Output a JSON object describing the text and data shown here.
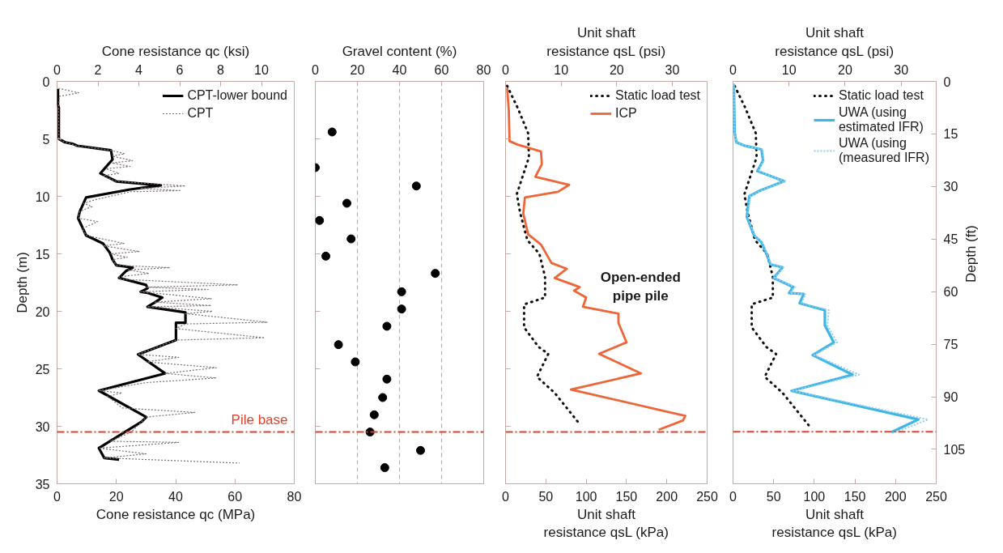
{
  "chart_data": [
    {
      "type": "line",
      "xlabel": "Cone resistance qc (MPa)",
      "x2label": "Cone resistance qc (ksi)",
      "ylabel": "Depth (m)",
      "xlim": [
        0,
        80
      ],
      "xticks": [
        0,
        20,
        40,
        60,
        80
      ],
      "x2lim": [
        0,
        11.603
      ],
      "x2ticks": [
        0,
        2,
        4,
        6,
        8,
        10
      ],
      "ylim": [
        35,
        0
      ],
      "yticks": [
        0,
        5,
        10,
        15,
        20,
        25,
        30,
        35
      ],
      "legend": "top right",
      "series": [
        {
          "name": "CPT-lower bound",
          "color": "#000000",
          "line_style": "solid",
          "x": [
            0.3,
            0.3,
            0.6,
            0.6,
            2.7,
            5.5,
            6.8,
            18.2,
            18.7,
            14.6,
            20,
            35,
            24.6,
            9.8,
            7.7,
            7.1,
            9.8,
            15.5,
            17.8,
            18.7,
            20,
            25.5,
            23.2,
            20.9,
            30,
            30.5,
            28.2,
            30.5,
            35.5,
            32.8,
            30.5,
            43.3,
            43.3,
            40.1,
            40.1,
            27.3,
            36.4,
            14.1,
            30.1,
            28.5,
            14.1,
            15.9,
            20.9
          ],
          "values": [
            0.66,
            2.0,
            2.3,
            5.0,
            5.3,
            5.45,
            5.6,
            6.0,
            6.8,
            8.0,
            8.7,
            9.04,
            9.4,
            10.1,
            11.3,
            11.9,
            13.4,
            14.1,
            14.9,
            15.5,
            16.0,
            16.2,
            16.5,
            17.1,
            17.7,
            18.0,
            18.3,
            18.4,
            18.8,
            19.25,
            19.6,
            20.1,
            21.0,
            21.0,
            22.5,
            23.75,
            25.4,
            26.9,
            29.2,
            29.6,
            31.9,
            32.75,
            32.9
          ]
        },
        {
          "name": "CPT",
          "color": "#7a7070",
          "line_style": "dotted",
          "x": [
            0.5,
            7.3,
            0.8,
            0.5,
            0.6,
            2.7,
            6.8,
            18.2,
            22.8,
            18.5,
            25.5,
            18.5,
            24.6,
            16.5,
            20.9,
            15.5,
            20,
            43.3,
            28,
            41.4,
            24.6,
            12.8,
            9,
            11.8,
            7.7,
            7.1,
            13.7,
            8.5,
            9.8,
            22.6,
            15.5,
            27.8,
            18,
            23.7,
            18.7,
            20,
            38,
            24,
            31,
            21,
            20.9,
            61,
            30,
            51,
            28.2,
            52,
            33,
            52,
            30.5,
            52.4,
            43.3,
            71,
            43.3,
            40.1,
            70,
            40.1,
            27.3,
            41,
            30,
            53.7,
            36.4,
            53.7,
            30,
            14.1,
            21.9,
            17,
            22,
            46.4,
            30.1,
            25,
            18,
            41,
            14.1,
            30,
            15.9,
            61.5
          ],
          "values": [
            0.6,
            1.0,
            1.3,
            2.2,
            5.0,
            5.3,
            5.6,
            6.0,
            6.3,
            6.5,
            6.9,
            7.1,
            7.4,
            7.6,
            8.0,
            8.2,
            8.7,
            9.1,
            9.3,
            9.5,
            9.6,
            10.3,
            10.6,
            10.9,
            11.3,
            11.9,
            12.2,
            12.8,
            13.4,
            14.1,
            14.3,
            14.8,
            15.0,
            15.3,
            15.5,
            16.0,
            16.2,
            16.4,
            16.7,
            17.0,
            17.2,
            17.7,
            17.9,
            18.1,
            18.3,
            18.9,
            19.2,
            19.5,
            19.6,
            20.0,
            20.2,
            20.95,
            21.1,
            21.5,
            22.3,
            22.5,
            23.75,
            24.0,
            24.4,
            24.9,
            25.4,
            25.8,
            26.2,
            26.9,
            27.1,
            27.4,
            28.4,
            28.8,
            29.2,
            30.5,
            31.3,
            31.4,
            31.9,
            32.4,
            32.75,
            33.2
          ]
        }
      ],
      "ref_lines": [
        {
          "axis": "y",
          "value": 30.5,
          "label": "Pile base",
          "color": "#e0412f",
          "line_style": "dashdot"
        }
      ]
    },
    {
      "type": "scatter",
      "xlabel": "Gravel content (%)",
      "xlim": [
        0,
        80
      ],
      "xticks": [
        0,
        20,
        40,
        60,
        80
      ],
      "ylim": [
        35,
        0
      ],
      "yticks": [
        0,
        5,
        10,
        15,
        20,
        25,
        30,
        35
      ],
      "tick_labels": "x",
      "grid": "x",
      "marker": "circle",
      "series": [
        {
          "color": "#000000",
          "x": [
            8,
            0,
            48,
            15,
            2,
            17,
            5,
            57,
            41,
            41,
            34,
            11,
            19,
            34,
            32,
            28,
            26,
            50,
            33
          ],
          "values": [
            4.4,
            7.5,
            9.1,
            10.6,
            12.1,
            13.7,
            15.2,
            16.7,
            18.3,
            19.8,
            21.3,
            22.9,
            24.4,
            25.9,
            27.5,
            29.0,
            30.5,
            32.1,
            33.6
          ]
        }
      ],
      "ref_lines": [
        {
          "axis": "y",
          "value": 30.5,
          "color": "#e0412f",
          "line_style": "dashdot"
        }
      ]
    },
    {
      "type": "line",
      "xlabel": "Unit shaft resistance qsL (kPa)",
      "x2label": "Unit shaft resistance qsL (psi)",
      "xlim": [
        0,
        250
      ],
      "xticks": [
        0,
        50,
        100,
        150,
        200,
        250
      ],
      "x2lim": [
        0,
        36.26
      ],
      "x2ticks": [
        0,
        10,
        20,
        30
      ],
      "ylim": [
        35,
        0
      ],
      "yticks": [
        0,
        5,
        10,
        15,
        20,
        25,
        30,
        35
      ],
      "tick_labels": "x",
      "legend": "top right",
      "series": [
        {
          "name": "Static load test",
          "color": "#111111",
          "line_style": "dotted",
          "x": [
            2,
            15,
            28,
            29,
            14,
            18,
            27,
            42,
            49,
            49,
            23,
            23,
            41,
            53,
            39,
            61,
            93
          ],
          "values": [
            0.4,
            2.3,
            4.5,
            6.6,
            9.8,
            11.4,
            13.8,
            15.0,
            17.0,
            18.8,
            19.4,
            21.4,
            23.1,
            23.7,
            25.7,
            27.1,
            29.9
          ]
        },
        {
          "name": "ICP",
          "color": "#ee6538",
          "line_style": "solid",
          "x": [
            2,
            4,
            5,
            15,
            44,
            45,
            37,
            79,
            65,
            24,
            22,
            28,
            44,
            57,
            76,
            61,
            92,
            85,
            100,
            96,
            140,
            140,
            150,
            116,
            168,
            81,
            223,
            220,
            190
          ],
          "values": [
            0.6,
            2.5,
            5.2,
            5.5,
            6.1,
            7.2,
            8.3,
            9.0,
            9.6,
            10.1,
            11.5,
            13.3,
            14.2,
            15.8,
            16.3,
            17.1,
            17.9,
            18.2,
            18.8,
            19.6,
            20.2,
            21.0,
            22.7,
            23.7,
            25.4,
            26.8,
            29.1,
            29.5,
            30.3
          ]
        }
      ],
      "annotations": [
        "Open-ended pipe pile"
      ],
      "ref_lines": [
        {
          "axis": "y",
          "value": 30.5,
          "color": "#e0412f",
          "line_style": "dashdot"
        }
      ]
    },
    {
      "type": "line",
      "xlabel": "Unit shaft resistance qsL (kPa)",
      "x2label": "Unit shaft resistance qsL (psi)",
      "ylabel": "Depth (ft)",
      "xlim": [
        0,
        250
      ],
      "xticks": [
        0,
        50,
        100,
        150,
        200,
        250
      ],
      "x2lim": [
        0,
        36.26
      ],
      "x2ticks": [
        0,
        10,
        20,
        30
      ],
      "ylim": [
        114.83,
        0
      ],
      "yticks": [
        0,
        15,
        30,
        45,
        60,
        75,
        90,
        105
      ],
      "legend": "top right",
      "series": [
        {
          "name": "Static load test",
          "color": "#111111",
          "line_style": "dotted",
          "x": [
            2,
            15,
            28,
            29,
            14,
            18,
            27,
            42,
            49,
            49,
            23,
            23,
            41,
            53,
            39,
            61,
            93
          ],
          "values": [
            1.3,
            7.5,
            14.8,
            21.7,
            32.2,
            37.4,
            45.3,
            49.2,
            55.8,
            61.7,
            63.6,
            70.2,
            75.8,
            77.8,
            84.3,
            88.9,
            98.1
          ]
        },
        {
          "name": "UWA (using estimated IFR)",
          "color": "#3db5e6",
          "line_style": "solid",
          "x": [
            1,
            2,
            4,
            15,
            35,
            37,
            30,
            63,
            33,
            20,
            17,
            26,
            35,
            41,
            46,
            61,
            50,
            74,
            69,
            87,
            82,
            113,
            113,
            124,
            98,
            147,
            72,
            228,
            195
          ],
          "values": [
            0.7,
            14.4,
            17.4,
            18.4,
            19.4,
            22.6,
            25.6,
            28.5,
            31.2,
            32.8,
            38.7,
            44.0,
            45.9,
            49.2,
            52.2,
            53.1,
            56.1,
            58.7,
            60.4,
            60.7,
            63.3,
            65.3,
            69.6,
            74.5,
            78.1,
            83.7,
            88.3,
            96.5,
            100.1
          ]
        },
        {
          "name": "UWA (using (measured IFR)",
          "color": "#8ecff0",
          "line_style": "dotted",
          "x": [
            1,
            2,
            4,
            15,
            36,
            38,
            31,
            64,
            34,
            21,
            18,
            27,
            36,
            42,
            47,
            62,
            51,
            76,
            70,
            89,
            84,
            118,
            116,
            128,
            100,
            155,
            74,
            240,
            200
          ],
          "values": [
            0.7,
            14.4,
            17.4,
            18.4,
            19.4,
            22.6,
            25.6,
            28.5,
            31.2,
            32.8,
            38.7,
            44.0,
            45.9,
            49.2,
            52.2,
            53.1,
            56.1,
            58.7,
            60.4,
            60.7,
            63.3,
            65.3,
            69.6,
            74.5,
            78.1,
            83.7,
            88.3,
            96.5,
            100.1
          ]
        }
      ],
      "ref_lines": [
        {
          "axis": "y",
          "value": 100,
          "color": "#e0412f",
          "line_style": "dashdot"
        }
      ]
    }
  ]
}
